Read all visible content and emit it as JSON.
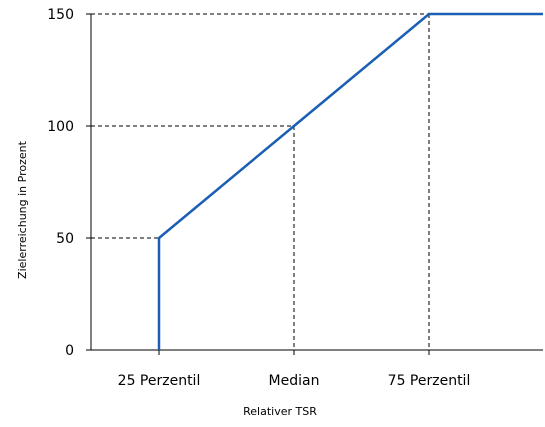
{
  "chart_data": {
    "type": "line",
    "xlabel": "Relativer TSR",
    "ylabel": "Zielerreichung in Prozent",
    "x_ticks": [
      "25 Perzentil",
      "Median",
      "75 Perzentil"
    ],
    "y_ticks": [
      0,
      50,
      100,
      150
    ],
    "ylim": [
      0,
      150
    ],
    "grid": false,
    "series": [
      {
        "color": "#1a5fb4",
        "points": [
          {
            "x": "25 Perzentil",
            "y": 0
          },
          {
            "x": "25 Perzentil",
            "y": 50
          },
          {
            "x": "Median",
            "y": 100
          },
          {
            "x": "75 Perzentil",
            "y": 150
          },
          {
            "x": "end",
            "y": 150
          }
        ]
      }
    ],
    "reference_lines_dashed": [
      {
        "x": "25 Perzentil",
        "y": 0
      },
      {
        "x": "25 Perzentil",
        "y": 50
      },
      {
        "x": "Median",
        "y": 100
      },
      {
        "x": "75 Perzentil",
        "y": 150
      }
    ]
  }
}
